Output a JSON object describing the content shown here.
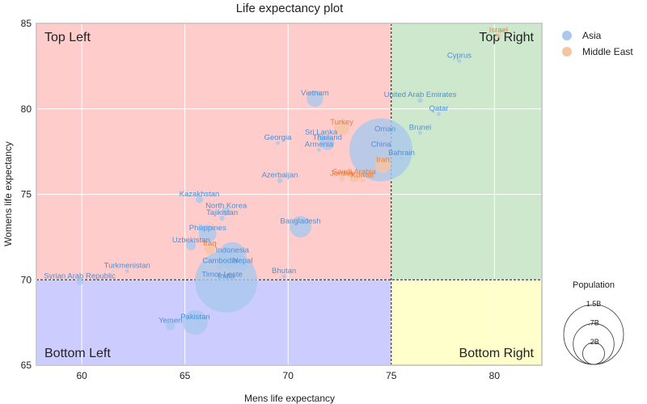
{
  "chart_data": {
    "type": "scatter",
    "title": "Life expectancy plot",
    "xlabel": "Mens life expectancy",
    "ylabel": "Womens life expectancy",
    "xlim": [
      57.8,
      82.3
    ],
    "ylim": [
      65,
      85
    ],
    "xticks": [
      60,
      65,
      70,
      75,
      80
    ],
    "yticks": [
      65,
      70,
      75,
      80,
      85
    ],
    "grid": true,
    "threshold_x": 75,
    "threshold_y": 70,
    "quadrants": [
      {
        "label": "Top Left",
        "color": "#ffcccc"
      },
      {
        "label": "Top Right",
        "color": "#cde8cd"
      },
      {
        "label": "Bottom Left",
        "color": "#ccccff"
      },
      {
        "label": "Bottom Right",
        "color": "#ffffcc"
      }
    ],
    "legend": {
      "placement": "right",
      "entries": [
        {
          "name": "Asia",
          "color": "#a9c8ec"
        },
        {
          "name": "Middle East",
          "color": "#f6c4a2"
        }
      ]
    },
    "size_legend": {
      "title": "Population",
      "entries": [
        {
          "label": "1.5B",
          "value": 1.5
        },
        {
          "label": ".7B",
          "value": 0.7
        },
        {
          "label": ".2B",
          "value": 0.2
        }
      ]
    },
    "label_colors": {
      "Asia": "#4a90d9",
      "Middle East": "#ee7b30"
    },
    "points": [
      {
        "label": "Israel",
        "region": "Middle East",
        "x": 80.2,
        "y": 84.3,
        "pop": 0.009
      },
      {
        "label": "Cyprus",
        "region": "Asia",
        "x": 78.3,
        "y": 82.8,
        "pop": 0.001
      },
      {
        "label": "United Arab Emirates",
        "region": "Asia",
        "x": 76.4,
        "y": 80.5,
        "pop": 0.009
      },
      {
        "label": "Qatar",
        "region": "Asia",
        "x": 77.3,
        "y": 79.7,
        "pop": 0.003
      },
      {
        "label": "Brunei",
        "region": "Asia",
        "x": 76.4,
        "y": 78.6,
        "pop": 0.0004
      },
      {
        "label": "Oman",
        "region": "Asia",
        "x": 74.7,
        "y": 78.5,
        "pop": 0.005
      },
      {
        "label": "Vietnam",
        "region": "Asia",
        "x": 71.3,
        "y": 80.6,
        "pop": 0.097
      },
      {
        "label": "Turkey",
        "region": "Middle East",
        "x": 72.6,
        "y": 78.9,
        "pop": 0.083
      },
      {
        "label": "Thailand",
        "region": "Asia",
        "x": 71.9,
        "y": 78.0,
        "pop": 0.07
      },
      {
        "label": "Sri Lanka",
        "region": "Asia",
        "x": 71.6,
        "y": 78.3,
        "pop": 0.021
      },
      {
        "label": "China",
        "region": "Asia",
        "x": 74.5,
        "y": 77.6,
        "pop": 1.41
      },
      {
        "label": "Bahrain",
        "region": "Asia",
        "x": 75.5,
        "y": 77.1,
        "pop": 0.0017
      },
      {
        "label": "Georgia",
        "region": "Asia",
        "x": 69.5,
        "y": 78.0,
        "pop": 0.004
      },
      {
        "label": "Armenia",
        "region": "Asia",
        "x": 71.5,
        "y": 77.6,
        "pop": 0.003
      },
      {
        "label": "Iran",
        "region": "Middle East",
        "x": 74.6,
        "y": 76.7,
        "pop": 0.085
      },
      {
        "label": "Azerbaijan",
        "region": "Asia",
        "x": 69.6,
        "y": 75.8,
        "pop": 0.01
      },
      {
        "label": "Jordan",
        "region": "Middle East",
        "x": 72.6,
        "y": 75.9,
        "pop": 0.01
      },
      {
        "label": "Kuwait",
        "region": "Middle East",
        "x": 73.6,
        "y": 75.8,
        "pop": 0.004
      },
      {
        "label": "Saudi Arabia",
        "region": "Middle East",
        "x": 73.2,
        "y": 76.0,
        "pop": 0.035
      },
      {
        "label": "Kazakhstan",
        "region": "Asia",
        "x": 65.7,
        "y": 74.7,
        "pop": 0.019
      },
      {
        "label": "North Korea",
        "region": "Asia",
        "x": 67.0,
        "y": 74.0,
        "pop": 0.026
      },
      {
        "label": "Tajikistan",
        "region": "Asia",
        "x": 66.8,
        "y": 73.6,
        "pop": 0.009
      },
      {
        "label": "Bangladesh",
        "region": "Asia",
        "x": 70.6,
        "y": 73.1,
        "pop": 0.165
      },
      {
        "label": "Philippines",
        "region": "Asia",
        "x": 66.1,
        "y": 72.7,
        "pop": 0.11
      },
      {
        "label": "Uzbekistan",
        "region": "Asia",
        "x": 65.3,
        "y": 72.0,
        "pop": 0.034
      },
      {
        "label": "Indonesia",
        "region": "Asia",
        "x": 67.3,
        "y": 71.4,
        "pop": 0.27
      },
      {
        "label": "Iraq",
        "region": "Middle East",
        "x": 66.2,
        "y": 71.8,
        "pop": 0.04
      },
      {
        "label": "Nepal",
        "region": "Asia",
        "x": 67.8,
        "y": 70.8,
        "pop": 0.029
      },
      {
        "label": "Turkmenistan",
        "region": "Asia",
        "x": 62.2,
        "y": 70.5,
        "pop": 0.006
      },
      {
        "label": "Cambodia",
        "region": "Asia",
        "x": 66.7,
        "y": 70.8,
        "pop": 0.017
      },
      {
        "label": "Bhutan",
        "region": "Asia",
        "x": 69.8,
        "y": 70.2,
        "pop": 0.0008
      },
      {
        "label": "Syrian Arab Republic",
        "region": "Asia",
        "x": 59.9,
        "y": 69.9,
        "pop": 0.018
      },
      {
        "label": "Timor-Leste",
        "region": "Asia",
        "x": 66.8,
        "y": 70.0,
        "pop": 0.0013
      },
      {
        "label": "India",
        "region": "Asia",
        "x": 67.0,
        "y": 69.9,
        "pop": 1.38
      },
      {
        "label": "Yemen",
        "region": "Asia",
        "x": 64.3,
        "y": 67.3,
        "pop": 0.03
      },
      {
        "label": "Pakistan",
        "region": "Asia",
        "x": 65.5,
        "y": 67.5,
        "pop": 0.22
      }
    ]
  }
}
